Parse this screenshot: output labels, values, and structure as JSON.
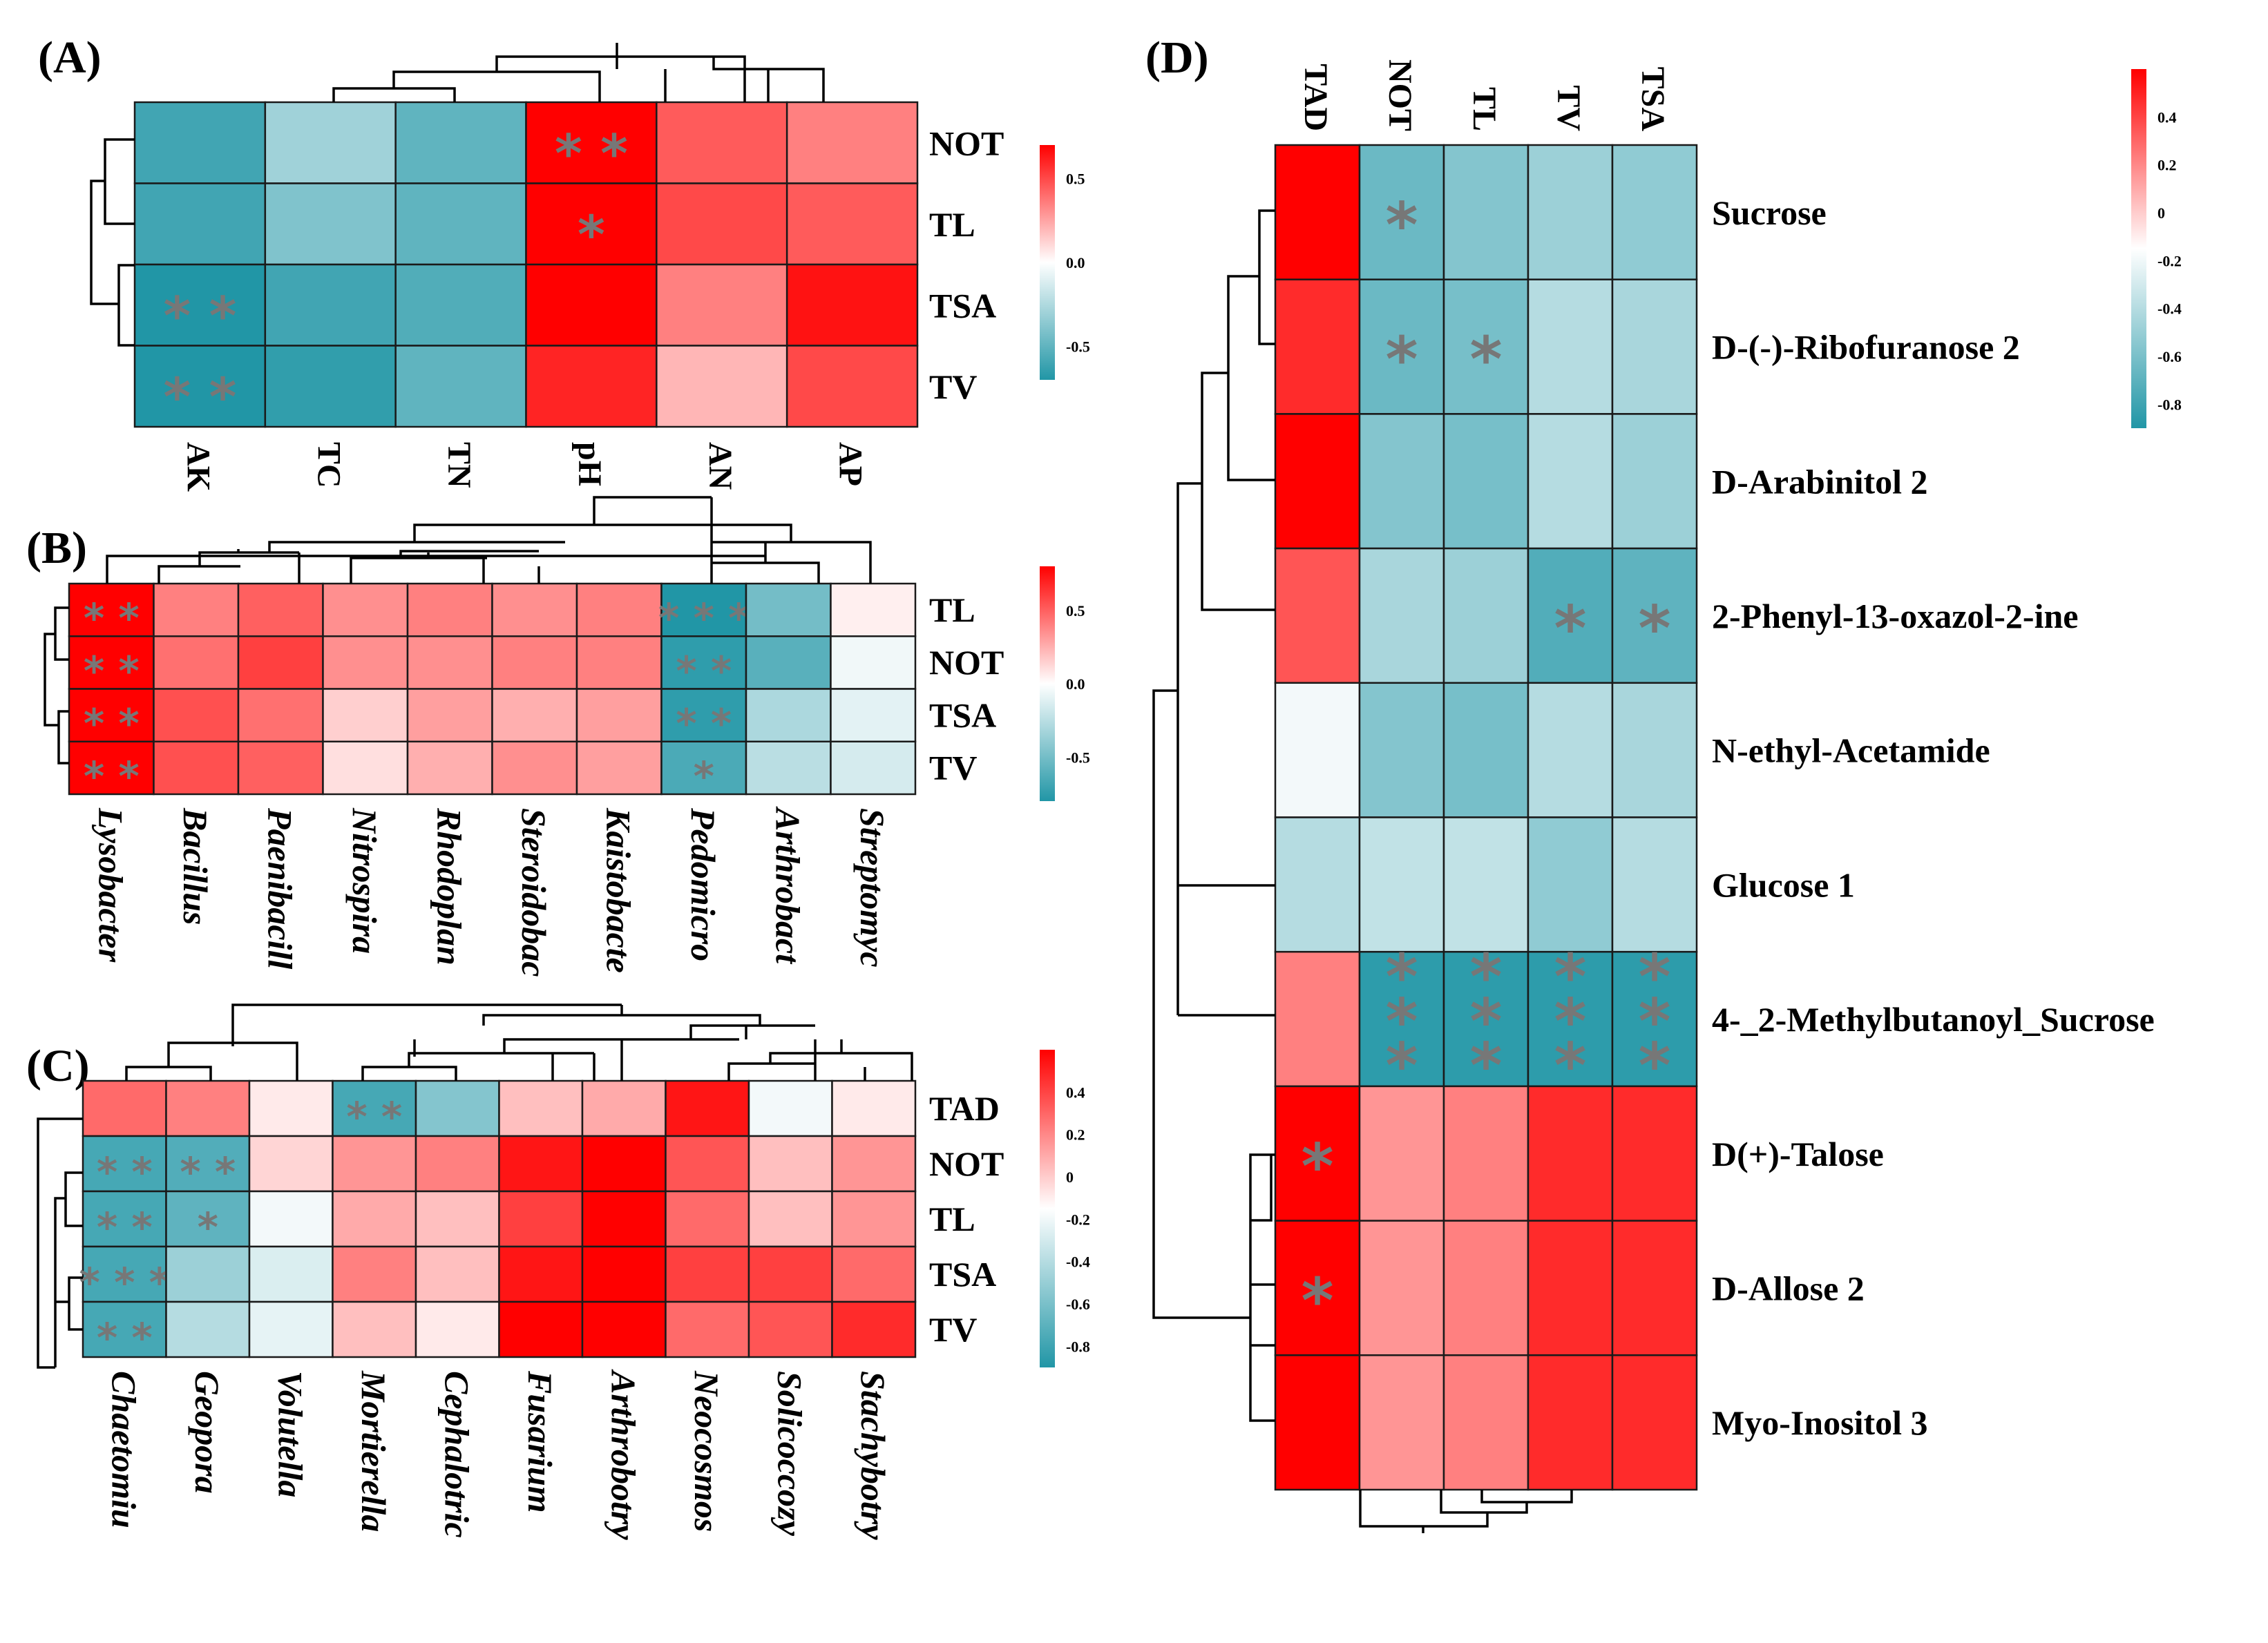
{
  "chart_data": [
    {
      "type": "heatmap",
      "panel": "(A)",
      "rows": [
        "NOT",
        "TL",
        "TSA",
        "TV"
      ],
      "columns": [
        "AK",
        "TC",
        "TN",
        "pH",
        "AN",
        "AP"
      ],
      "values": [
        [
          -0.6,
          -0.3,
          -0.5,
          0.9,
          0.45,
          0.35
        ],
        [
          -0.6,
          -0.4,
          -0.5,
          0.85,
          0.5,
          0.45
        ],
        [
          -0.75,
          -0.6,
          -0.55,
          0.7,
          0.35,
          0.65
        ],
        [
          -0.75,
          -0.65,
          -0.5,
          0.6,
          0.2,
          0.5
        ]
      ],
      "significance": [
        [
          "",
          "",
          "",
          "**",
          "",
          ""
        ],
        [
          "",
          "",
          "",
          "*",
          "",
          ""
        ],
        [
          "**",
          "",
          "",
          "",
          "",
          ""
        ],
        [
          "**",
          "",
          "",
          "",
          "",
          ""
        ]
      ],
      "legend": {
        "ticks": [
          0.5,
          0.0,
          -0.5
        ],
        "tick_labels": [
          "0.5",
          "0.0",
          "-0.5"
        ],
        "range": [
          -0.7,
          0.7
        ]
      }
    },
    {
      "type": "heatmap",
      "panel": "(B)",
      "rows": [
        "TL",
        "NOT",
        "TSA",
        "TV"
      ],
      "columns": [
        "Lysobacter",
        "Bacillus",
        "Paenibacill",
        "Nitrospira",
        "Rhodoplan",
        "Steroidobac",
        "Kaistobacte",
        "Pedomicro",
        "Arthrobact",
        "Streptomyc"
      ],
      "values": [
        [
          0.85,
          0.4,
          0.5,
          0.35,
          0.4,
          0.35,
          0.4,
          -0.8,
          -0.5,
          0.05
        ],
        [
          0.85,
          0.45,
          0.6,
          0.35,
          0.35,
          0.4,
          0.4,
          -0.75,
          -0.6,
          -0.05
        ],
        [
          0.85,
          0.55,
          0.45,
          0.15,
          0.3,
          0.25,
          0.3,
          -0.75,
          -0.3,
          -0.1
        ],
        [
          0.85,
          0.55,
          0.5,
          0.1,
          0.25,
          0.35,
          0.3,
          -0.65,
          -0.25,
          -0.15
        ]
      ],
      "significance": [
        [
          "**",
          "",
          "",
          "",
          "",
          "",
          "",
          "***",
          "",
          ""
        ],
        [
          "**",
          "",
          "",
          "",
          "",
          "",
          "",
          "**",
          "",
          ""
        ],
        [
          "**",
          "",
          "",
          "",
          "",
          "",
          "",
          "**",
          "",
          ""
        ],
        [
          "**",
          "",
          "",
          "",
          "",
          "",
          "",
          "*",
          "",
          ""
        ]
      ],
      "legend": {
        "ticks": [
          0.5,
          0.0,
          -0.5
        ],
        "tick_labels": [
          "0.5",
          "0.0",
          "-0.5"
        ],
        "range": [
          -0.8,
          0.8
        ]
      }
    },
    {
      "type": "heatmap",
      "panel": "(C)",
      "rows": [
        "TAD",
        "NOT",
        "TL",
        "TSA",
        "TV"
      ],
      "columns": [
        "Chaetomiu",
        "Geopora",
        "Volutella",
        "Mortierella",
        "Cephalotric",
        "Fusarium",
        "Arthrobotry",
        "Neocosmos",
        "Solicoccozy",
        "Stachybotry"
      ],
      "values": [
        [
          0.35,
          0.3,
          0.05,
          -0.75,
          -0.5,
          0.15,
          0.2,
          0.55,
          -0.05,
          0.05
        ],
        [
          -0.75,
          -0.7,
          0.1,
          0.25,
          0.3,
          0.55,
          0.75,
          0.4,
          0.15,
          0.25
        ],
        [
          -0.75,
          -0.65,
          -0.05,
          0.2,
          0.15,
          0.45,
          0.8,
          0.35,
          0.15,
          0.25
        ],
        [
          -0.75,
          -0.4,
          -0.15,
          0.3,
          0.15,
          0.55,
          0.7,
          0.45,
          0.45,
          0.35
        ],
        [
          -0.75,
          -0.3,
          -0.1,
          0.15,
          0.05,
          0.7,
          0.7,
          0.35,
          0.4,
          0.5
        ]
      ],
      "significance": [
        [
          "",
          "",
          "",
          "**",
          "",
          "",
          "",
          "",
          "",
          ""
        ],
        [
          "**",
          "**",
          "",
          "",
          "",
          "",
          "",
          "",
          "",
          ""
        ],
        [
          "**",
          "*",
          "",
          "",
          "",
          "",
          "",
          "",
          "",
          ""
        ],
        [
          "***",
          "",
          "",
          "",
          "",
          "",
          "",
          "",
          "",
          ""
        ],
        [
          "**",
          "",
          "",
          "",
          "",
          "",
          "",
          "",
          "",
          ""
        ]
      ],
      "legend": {
        "ticks": [
          0.4,
          0.2,
          0,
          -0.2,
          -0.4,
          -0.6,
          -0.8
        ],
        "tick_labels": [
          "0.4",
          "0.2",
          "0",
          "-0.2",
          "-0.4",
          "-0.6",
          "-0.8"
        ],
        "range": [
          -0.9,
          0.6
        ]
      }
    },
    {
      "type": "heatmap",
      "panel": "(D)",
      "rows": [
        "Sucrose",
        "D-(-)-Ribofuranose 2",
        "D-Arabinitol 2",
        "2-Phenyl-13-oxazol-2-ine",
        "N-ethyl-Acetamide",
        "Glucose 1",
        "4-_2-Methylbutanoyl_Sucrose",
        "D(+)-Talose",
        "D-Allose 2",
        "Myo-Inositol 3"
      ],
      "columns": [
        "TAD",
        "NOT",
        "TL",
        "TV",
        "TSA"
      ],
      "values": [
        [
          0.7,
          -0.6,
          -0.5,
          -0.4,
          -0.45
        ],
        [
          0.5,
          -0.6,
          -0.55,
          -0.3,
          -0.35
        ],
        [
          0.8,
          -0.5,
          -0.55,
          -0.3,
          -0.4
        ],
        [
          0.4,
          -0.35,
          -0.4,
          -0.7,
          -0.65
        ],
        [
          -0.05,
          -0.5,
          -0.55,
          -0.3,
          -0.35
        ],
        [
          -0.3,
          -0.25,
          -0.25,
          -0.45,
          -0.3
        ],
        [
          0.3,
          -0.85,
          -0.85,
          -0.85,
          -0.85
        ],
        [
          0.85,
          0.25,
          0.3,
          0.5,
          0.5
        ],
        [
          0.85,
          0.25,
          0.3,
          0.5,
          0.5
        ],
        [
          0.75,
          0.25,
          0.3,
          0.5,
          0.5
        ]
      ],
      "significance": [
        [
          "",
          "*",
          "",
          "",
          ""
        ],
        [
          "",
          "*",
          "*",
          "",
          ""
        ],
        [
          "",
          "",
          "",
          "",
          ""
        ],
        [
          "",
          "",
          "",
          "*",
          "*"
        ],
        [
          "",
          "",
          "",
          "",
          ""
        ],
        [
          "",
          "",
          "",
          "",
          ""
        ],
        [
          "",
          "***",
          "***",
          "***",
          "***"
        ],
        [
          "*",
          "",
          "",
          "",
          ""
        ],
        [
          "*",
          "",
          "",
          "",
          ""
        ],
        [
          "",
          "",
          "",
          "",
          ""
        ]
      ],
      "legend": {
        "ticks": [
          0.4,
          0.2,
          0,
          -0.2,
          -0.4,
          -0.6,
          -0.8
        ],
        "tick_labels": [
          "0.4",
          "0.2",
          "0",
          "-0.2",
          "-0.4",
          "-0.6",
          "-0.8"
        ],
        "range": [
          -0.9,
          0.6
        ]
      }
    }
  ],
  "colors": {
    "high": "#ff0000",
    "mid": "#ffffff",
    "low": "#2196a6",
    "star": "#777777"
  }
}
